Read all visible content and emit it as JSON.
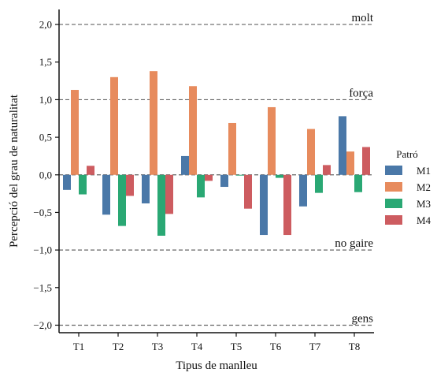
{
  "chart_data": {
    "type": "bar",
    "categories": [
      "T1",
      "T2",
      "T3",
      "T4",
      "T5",
      "T6",
      "T7",
      "T8"
    ],
    "series": [
      {
        "name": "M1",
        "color": "#4a78a8",
        "values": [
          -0.2,
          -0.53,
          -0.38,
          0.25,
          -0.16,
          -0.8,
          -0.42,
          0.78
        ]
      },
      {
        "name": "M2",
        "color": "#e78b5d",
        "values": [
          1.13,
          1.3,
          1.38,
          1.18,
          0.69,
          0.9,
          0.61,
          0.31
        ]
      },
      {
        "name": "M3",
        "color": "#2aa874",
        "values": [
          -0.26,
          -0.68,
          -0.81,
          -0.3,
          -0.01,
          -0.04,
          -0.24,
          -0.23
        ]
      },
      {
        "name": "M4",
        "color": "#cd5c60",
        "values": [
          0.12,
          -0.28,
          -0.52,
          -0.08,
          -0.45,
          -0.8,
          0.13,
          0.37
        ]
      }
    ],
    "xlabel": "Tipus de manlleu",
    "ylabel": "Percepció del grau de naturalitat",
    "ylim": [
      -2.1,
      2.2
    ],
    "yticks": [
      -2.0,
      -1.5,
      -1.0,
      -0.5,
      0.0,
      0.5,
      1.0,
      1.5,
      2.0
    ],
    "ytick_labels": [
      "−2,0",
      "−1,5",
      "−1,0",
      "−0,5",
      "0,0",
      "0,5",
      "1,0",
      "1,5",
      "2,0"
    ],
    "reference_lines": [
      {
        "y": 2.0,
        "label": "molt"
      },
      {
        "y": 1.0,
        "label": "força"
      },
      {
        "y": -1.0,
        "label": "no gaire"
      },
      {
        "y": -2.0,
        "label": "gens"
      }
    ],
    "legend": {
      "title": "Patró",
      "position": "right"
    },
    "grid": false
  }
}
